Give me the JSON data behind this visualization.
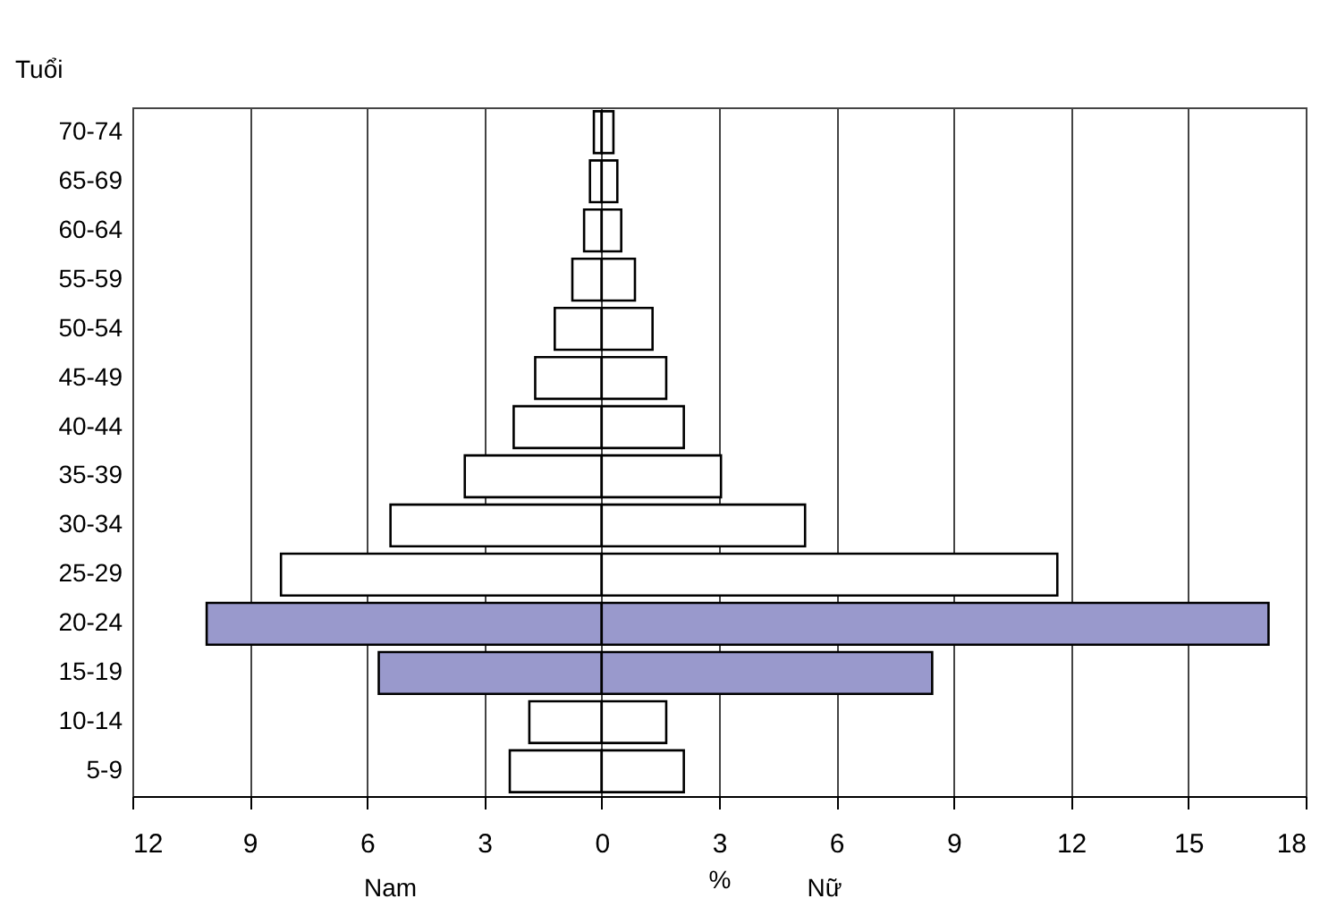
{
  "chart_data": {
    "type": "bar",
    "orientation": "horizontal",
    "ylabel": "Tuổi",
    "xlabel": "%",
    "categories": [
      "70-74",
      "65-69",
      "60-64",
      "55-59",
      "50-54",
      "45-49",
      "40-44",
      "35-39",
      "30-34",
      "25-29",
      "20-24",
      "15-19",
      "10-14",
      "5-9"
    ],
    "series": [
      {
        "values": [
          -0.2,
          -0.3,
          -0.45,
          -0.75,
          -1.2,
          -1.7,
          -2.25,
          -3.5,
          -5.4,
          -8.2,
          -10.1,
          -5.7,
          -1.85,
          -2.35
        ],
        "colors": [
          "#ffffff",
          "#ffffff",
          "#ffffff",
          "#ffffff",
          "#ffffff",
          "#ffffff",
          "#ffffff",
          "#ffffff",
          "#ffffff",
          "#ffffff",
          "#9999cc",
          "#9999cc",
          "#ffffff",
          "#ffffff"
        ]
      },
      {
        "values": [
          0.3,
          0.4,
          0.5,
          0.85,
          1.3,
          1.65,
          2.1,
          3.05,
          5.2,
          11.65,
          17.05,
          8.45,
          1.65,
          2.1
        ],
        "colors": [
          "#ffffff",
          "#ffffff",
          "#ffffff",
          "#ffffff",
          "#ffffff",
          "#ffffff",
          "#ffffff",
          "#ffffff",
          "#ffffff",
          "#ffffff",
          "#9999cc",
          "#9999cc",
          "#ffffff",
          "#ffffff"
        ]
      }
    ],
    "xlim": [
      -12,
      18
    ],
    "xticks": [
      {
        "value": -12,
        "label": "12"
      },
      {
        "value": -9,
        "label": "9"
      },
      {
        "value": -6,
        "label": "6"
      },
      {
        "value": -3,
        "label": "3"
      },
      0,
      3,
      6,
      9,
      12,
      15,
      18
    ],
    "stacked": true,
    "grid": "x",
    "annotations": [
      "Nam",
      "Nữ"
    ]
  }
}
